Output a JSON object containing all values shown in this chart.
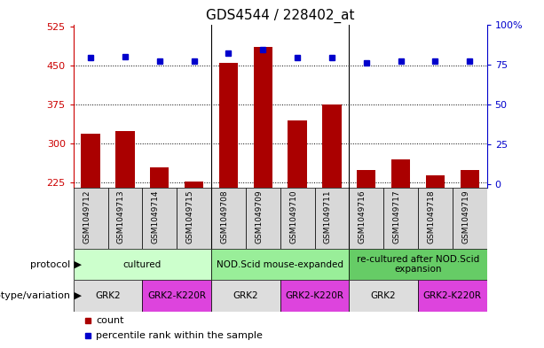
{
  "title": "GDS4544 / 228402_at",
  "samples": [
    "GSM1049712",
    "GSM1049713",
    "GSM1049714",
    "GSM1049715",
    "GSM1049708",
    "GSM1049709",
    "GSM1049710",
    "GSM1049711",
    "GSM1049716",
    "GSM1049717",
    "GSM1049718",
    "GSM1049719"
  ],
  "counts": [
    320,
    325,
    255,
    228,
    455,
    487,
    345,
    375,
    250,
    270,
    240,
    250
  ],
  "percentiles": [
    79,
    80,
    77,
    77,
    82,
    84,
    79,
    79,
    76,
    77,
    77,
    77
  ],
  "ylim_left": [
    215,
    530
  ],
  "ylim_right": [
    -2.5,
    100
  ],
  "yticks_left": [
    225,
    300,
    375,
    450,
    525
  ],
  "yticks_right": [
    0,
    25,
    50,
    75,
    100
  ],
  "hgrid_vals": [
    300,
    375,
    450
  ],
  "bar_color": "#aa0000",
  "dot_color": "#0000cc",
  "left_axis_color": "#cc0000",
  "right_axis_color": "#0000cc",
  "protocol_groups": [
    {
      "label": "cultured",
      "start": 0,
      "end": 4,
      "color": "#ccffcc"
    },
    {
      "label": "NOD.Scid mouse-expanded",
      "start": 4,
      "end": 8,
      "color": "#99ee99"
    },
    {
      "label": "re-cultured after NOD.Scid\nexpansion",
      "start": 8,
      "end": 12,
      "color": "#66cc66"
    }
  ],
  "genotype_groups": [
    {
      "label": "GRK2",
      "start": 0,
      "end": 2,
      "color": "#dddddd"
    },
    {
      "label": "GRK2-K220R",
      "start": 2,
      "end": 4,
      "color": "#dd44dd"
    },
    {
      "label": "GRK2",
      "start": 4,
      "end": 6,
      "color": "#dddddd"
    },
    {
      "label": "GRK2-K220R",
      "start": 6,
      "end": 8,
      "color": "#dd44dd"
    },
    {
      "label": "GRK2",
      "start": 8,
      "end": 10,
      "color": "#dddddd"
    },
    {
      "label": "GRK2-K220R",
      "start": 10,
      "end": 12,
      "color": "#dd44dd"
    }
  ],
  "group_dividers": [
    3.5,
    7.5
  ],
  "sample_bg_color": "#d8d8d8",
  "legend_items": [
    {
      "color": "#aa0000",
      "label": "count"
    },
    {
      "color": "#0000cc",
      "label": "percentile rank within the sample"
    }
  ]
}
